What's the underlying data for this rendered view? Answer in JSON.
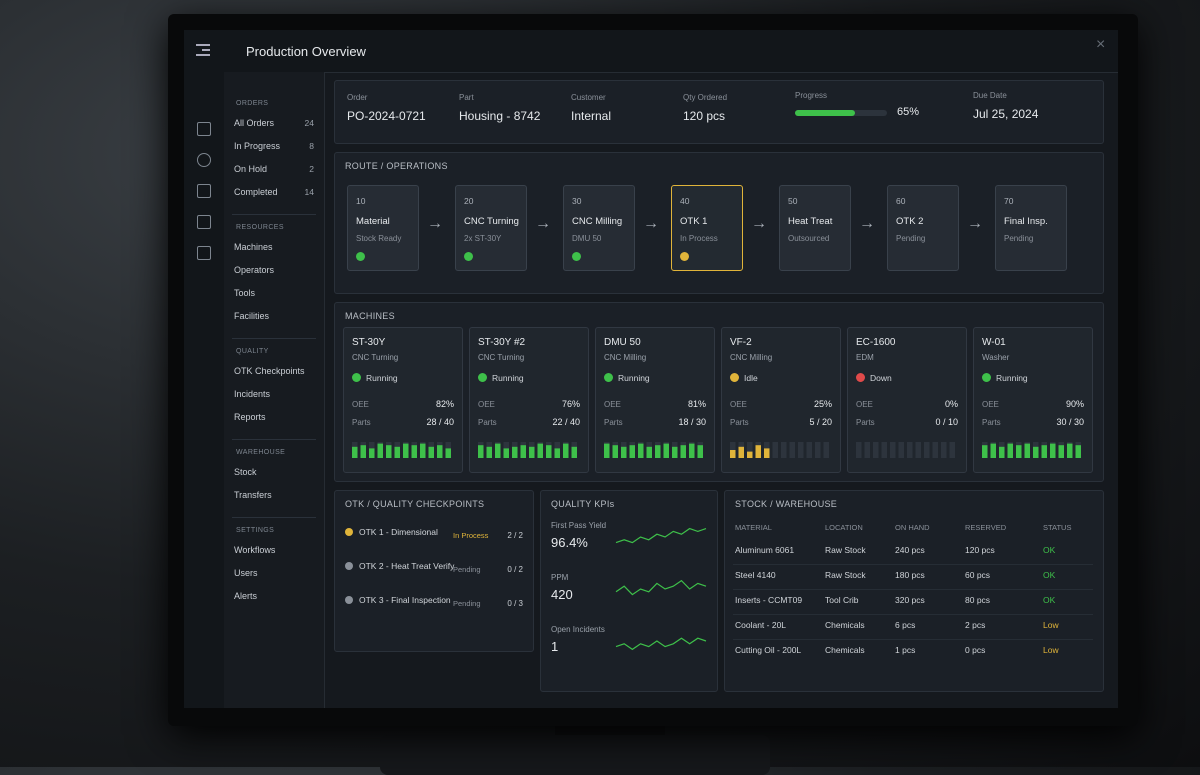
{
  "header": {
    "title": "Production Overview"
  },
  "sidebar": {
    "sections": [
      {
        "heading": "ORDERS",
        "items": [
          {
            "label": "All Orders",
            "count": "24"
          },
          {
            "label": "In Progress",
            "count": "8"
          },
          {
            "label": "On Hold",
            "count": "2"
          },
          {
            "label": "Completed",
            "count": "14"
          }
        ]
      },
      {
        "heading": "RESOURCES",
        "items": [
          {
            "label": "Machines"
          },
          {
            "label": "Operators"
          },
          {
            "label": "Tools"
          },
          {
            "label": "Facilities"
          }
        ]
      },
      {
        "heading": "QUALITY",
        "items": [
          {
            "label": "OTK Checkpoints"
          },
          {
            "label": "Incidents"
          },
          {
            "label": "Reports"
          }
        ]
      },
      {
        "heading": "WAREHOUSE",
        "items": [
          {
            "label": "Stock"
          },
          {
            "label": "Transfers"
          }
        ]
      },
      {
        "heading": "SETTINGS",
        "items": [
          {
            "label": "Workflows"
          },
          {
            "label": "Users"
          },
          {
            "label": "Alerts"
          }
        ]
      }
    ]
  },
  "order": {
    "fields": [
      {
        "label": "Order",
        "value": "PO-2024-0721"
      },
      {
        "label": "Part",
        "value": "Housing - 8742"
      },
      {
        "label": "Customer",
        "value": "Internal"
      },
      {
        "label": "Qty Ordered",
        "value": "120 pcs"
      }
    ],
    "progress": {
      "label": "Progress",
      "value": 65,
      "value_label": "65%",
      "color": "#3ec04a"
    },
    "due": {
      "label": "Due Date",
      "value": "Jul 25, 2024"
    }
  },
  "route": {
    "title": "ROUTE / OPERATIONS",
    "steps": [
      {
        "number": "10",
        "name": "Material",
        "detail": "Stock Ready",
        "state": "done"
      },
      {
        "number": "20",
        "name": "CNC Turning",
        "detail": "2x ST-30Y",
        "state": "done"
      },
      {
        "number": "30",
        "name": "CNC Milling",
        "detail": "DMU 50",
        "state": "done"
      },
      {
        "number": "40",
        "name": "OTK 1",
        "detail": "In Process",
        "state": "active"
      },
      {
        "number": "50",
        "name": "Heat Treat",
        "detail": "Outsourced",
        "state": "pending"
      },
      {
        "number": "60",
        "name": "OTK 2",
        "detail": "Pending",
        "state": "pending"
      },
      {
        "number": "70",
        "name": "Final Insp.",
        "detail": "Pending",
        "state": "pending"
      }
    ]
  },
  "machines": {
    "title": "MACHINES",
    "oee_label": "OEE",
    "parts_label": "Parts",
    "items": [
      {
        "name": "ST-30Y",
        "type": "CNC Turning",
        "status": "Running",
        "color": "#3ec04a",
        "oee": "82%",
        "parts": "28 / 40",
        "bars": [
          7,
          8,
          6,
          9,
          8,
          7,
          9,
          8,
          9,
          7,
          8,
          6
        ]
      },
      {
        "name": "ST-30Y #2",
        "type": "CNC Turning",
        "status": "Running",
        "color": "#3ec04a",
        "oee": "76%",
        "parts": "22 / 40",
        "bars": [
          8,
          7,
          9,
          6,
          7,
          8,
          7,
          9,
          8,
          6,
          9,
          7
        ]
      },
      {
        "name": "DMU 50",
        "type": "CNC Milling",
        "status": "Running",
        "color": "#3ec04a",
        "oee": "81%",
        "parts": "18 / 30",
        "bars": [
          9,
          8,
          7,
          8,
          9,
          7,
          8,
          9,
          7,
          8,
          9,
          8
        ]
      },
      {
        "name": "VF-2",
        "type": "CNC Milling",
        "status": "Idle",
        "color": "#e0b43a",
        "oee": "25%",
        "parts": "5 / 20",
        "bars": [
          5,
          7,
          4,
          8,
          6,
          0,
          0,
          0,
          0,
          0,
          0,
          0
        ]
      },
      {
        "name": "EC-1600",
        "type": "EDM",
        "status": "Down",
        "color": "#e04a4a",
        "oee": "0%",
        "parts": "0 / 10",
        "bars": [
          0,
          0,
          0,
          0,
          0,
          0,
          0,
          0,
          0,
          0,
          0,
          0
        ]
      },
      {
        "name": "W-01",
        "type": "Washer",
        "status": "Running",
        "color": "#3ec04a",
        "oee": "90%",
        "parts": "30 / 30",
        "bars": [
          8,
          9,
          7,
          9,
          8,
          9,
          7,
          8,
          9,
          8,
          9,
          8
        ]
      }
    ]
  },
  "checkpoints": {
    "title": "OTK / QUALITY CHECKPOINTS",
    "items": [
      {
        "name": "OTK 1 - Dimensional",
        "status": "In Process",
        "count": "2 / 2",
        "color": "#e0b43a"
      },
      {
        "name": "OTK 2 - Heat Treat Verify",
        "status": "Pending",
        "count": "0 / 2",
        "color": "#8a9099"
      },
      {
        "name": "OTK 3 - Final Inspection",
        "status": "Pending",
        "count": "0 / 3",
        "color": "#8a9099"
      }
    ]
  },
  "kpis": {
    "title": "QUALITY KPIs",
    "color": "#3ec04a",
    "items": [
      {
        "label": "First Pass Yield",
        "value": "96.4%",
        "trend": [
          3,
          4,
          3,
          5,
          4,
          6,
          5,
          7,
          6,
          8,
          7,
          8
        ]
      },
      {
        "label": "PPM",
        "value": "420",
        "trend": [
          4,
          6,
          3,
          5,
          4,
          7,
          5,
          6,
          8,
          5,
          7,
          6
        ]
      },
      {
        "label": "Open Incidents",
        "value": "1",
        "trend": [
          3,
          4,
          2,
          4,
          3,
          5,
          3,
          4,
          6,
          4,
          6,
          5
        ]
      }
    ]
  },
  "stock": {
    "title": "STOCK / WAREHOUSE",
    "columns": [
      "MATERIAL",
      "LOCATION",
      "ON HAND",
      "RESERVED",
      "STATUS"
    ],
    "rows": [
      {
        "cells": [
          "Aluminum 6061",
          "Raw Stock",
          "240 pcs",
          "120 pcs",
          "OK"
        ],
        "color": "#3ec04a"
      },
      {
        "cells": [
          "Steel 4140",
          "Raw Stock",
          "180 pcs",
          "60 pcs",
          "OK"
        ],
        "color": "#3ec04a"
      },
      {
        "cells": [
          "Inserts - CCMT09",
          "Tool Crib",
          "320 pcs",
          "80 pcs",
          "OK"
        ],
        "color": "#3ec04a"
      },
      {
        "cells": [
          "Coolant - 20L",
          "Chemicals",
          "6 pcs",
          "2 pcs",
          "Low"
        ],
        "color": "#e0b43a"
      },
      {
        "cells": [
          "Cutting Oil - 200L",
          "Chemicals",
          "1 pcs",
          "0 pcs",
          "Low"
        ],
        "color": "#e0b43a"
      }
    ]
  }
}
